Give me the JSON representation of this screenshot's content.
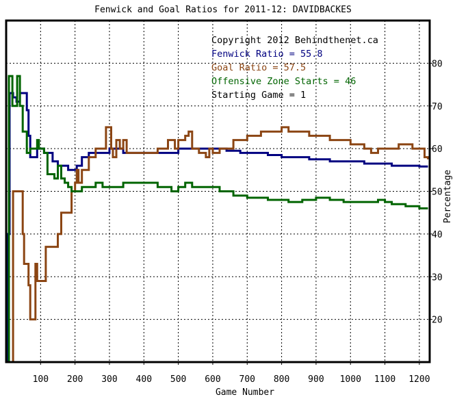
{
  "chart_data": {
    "type": "line",
    "title": "Fenwick and Goal Ratios for 2011-12: DAVIDBACKES",
    "xlabel": "Game Number",
    "ylabel": "Percentage",
    "xlim": [
      0,
      1230
    ],
    "ylim": [
      10,
      90
    ],
    "x_ticks": [
      100,
      200,
      300,
      400,
      500,
      600,
      700,
      800,
      900,
      1000,
      1100,
      1200
    ],
    "y_ticks": [
      20,
      30,
      40,
      50,
      60,
      70,
      80
    ],
    "grid": true,
    "legend_lines": [
      {
        "text": "Copyright 2012 Behindthenet.ca",
        "color": "#000000"
      },
      {
        "text": "Fenwick Ratio = 55.8",
        "color": "#000080"
      },
      {
        "text": "Goal Ratio = 57.5",
        "color": "#8b4513"
      },
      {
        "text": "Offensive Zone Starts = 46",
        "color": "#006400"
      },
      {
        "text": "Starting Game = 1",
        "color": "#000000"
      }
    ],
    "series": [
      {
        "name": "Fenwick Ratio",
        "color": "#000080",
        "points": [
          [
            1,
            10
          ],
          [
            4,
            10
          ],
          [
            6,
            40
          ],
          [
            10,
            73
          ],
          [
            20,
            72
          ],
          [
            30,
            71
          ],
          [
            40,
            73
          ],
          [
            50,
            73
          ],
          [
            55,
            73
          ],
          [
            60,
            69
          ],
          [
            65,
            63
          ],
          [
            70,
            58
          ],
          [
            80,
            58
          ],
          [
            90,
            60
          ],
          [
            100,
            60
          ],
          [
            110,
            59
          ],
          [
            125,
            59
          ],
          [
            135,
            57
          ],
          [
            150,
            56
          ],
          [
            165,
            56
          ],
          [
            180,
            55
          ],
          [
            195,
            55
          ],
          [
            205,
            56
          ],
          [
            220,
            58
          ],
          [
            240,
            59
          ],
          [
            260,
            59
          ],
          [
            280,
            59
          ],
          [
            300,
            60
          ],
          [
            320,
            60
          ],
          [
            340,
            59
          ],
          [
            360,
            59
          ],
          [
            380,
            59
          ],
          [
            400,
            59
          ],
          [
            420,
            59
          ],
          [
            440,
            59
          ],
          [
            460,
            59
          ],
          [
            480,
            59
          ],
          [
            500,
            60
          ],
          [
            520,
            60
          ],
          [
            540,
            60
          ],
          [
            560,
            60
          ],
          [
            580,
            60
          ],
          [
            600,
            60
          ],
          [
            620,
            60
          ],
          [
            640,
            59.5
          ],
          [
            660,
            59.5
          ],
          [
            680,
            59
          ],
          [
            700,
            59
          ],
          [
            720,
            59
          ],
          [
            740,
            59
          ],
          [
            760,
            58.5
          ],
          [
            780,
            58.5
          ],
          [
            800,
            58
          ],
          [
            820,
            58
          ],
          [
            840,
            58
          ],
          [
            860,
            58
          ],
          [
            880,
            57.5
          ],
          [
            900,
            57.5
          ],
          [
            920,
            57.5
          ],
          [
            940,
            57
          ],
          [
            960,
            57
          ],
          [
            980,
            57
          ],
          [
            1000,
            57
          ],
          [
            1020,
            57
          ],
          [
            1040,
            56.5
          ],
          [
            1060,
            56.5
          ],
          [
            1080,
            56.5
          ],
          [
            1100,
            56.5
          ],
          [
            1120,
            56
          ],
          [
            1140,
            56
          ],
          [
            1160,
            56
          ],
          [
            1180,
            56
          ],
          [
            1200,
            55.8
          ],
          [
            1225,
            55.8
          ]
        ]
      },
      {
        "name": "Goal Ratio",
        "color": "#8b4513",
        "points": [
          [
            1,
            10
          ],
          [
            10,
            10
          ],
          [
            15,
            10
          ],
          [
            20,
            50
          ],
          [
            30,
            50
          ],
          [
            45,
            50
          ],
          [
            48,
            40
          ],
          [
            52,
            33
          ],
          [
            60,
            33
          ],
          [
            65,
            28
          ],
          [
            70,
            20
          ],
          [
            80,
            20
          ],
          [
            85,
            33
          ],
          [
            90,
            29
          ],
          [
            100,
            29
          ],
          [
            110,
            29
          ],
          [
            115,
            37
          ],
          [
            125,
            37
          ],
          [
            135,
            37
          ],
          [
            140,
            37
          ],
          [
            150,
            40
          ],
          [
            160,
            45
          ],
          [
            170,
            45
          ],
          [
            180,
            45
          ],
          [
            190,
            50
          ],
          [
            200,
            52
          ],
          [
            205,
            55
          ],
          [
            210,
            52
          ],
          [
            220,
            55
          ],
          [
            240,
            58
          ],
          [
            260,
            60
          ],
          [
            280,
            60
          ],
          [
            290,
            65
          ],
          [
            300,
            65
          ],
          [
            305,
            60
          ],
          [
            310,
            58
          ],
          [
            320,
            62
          ],
          [
            330,
            60
          ],
          [
            340,
            62
          ],
          [
            350,
            59
          ],
          [
            360,
            59
          ],
          [
            380,
            59
          ],
          [
            400,
            59
          ],
          [
            420,
            59
          ],
          [
            440,
            60
          ],
          [
            460,
            60
          ],
          [
            470,
            62
          ],
          [
            480,
            62
          ],
          [
            490,
            60
          ],
          [
            500,
            62
          ],
          [
            510,
            62
          ],
          [
            520,
            63
          ],
          [
            530,
            64
          ],
          [
            540,
            60
          ],
          [
            550,
            60
          ],
          [
            560,
            59
          ],
          [
            580,
            58
          ],
          [
            590,
            60
          ],
          [
            600,
            59
          ],
          [
            620,
            60
          ],
          [
            640,
            60
          ],
          [
            660,
            62
          ],
          [
            680,
            62
          ],
          [
            700,
            63
          ],
          [
            720,
            63
          ],
          [
            740,
            64
          ],
          [
            760,
            64
          ],
          [
            780,
            64
          ],
          [
            800,
            65
          ],
          [
            820,
            64
          ],
          [
            840,
            64
          ],
          [
            860,
            64
          ],
          [
            880,
            63
          ],
          [
            900,
            63
          ],
          [
            920,
            63
          ],
          [
            940,
            62
          ],
          [
            960,
            62
          ],
          [
            980,
            62
          ],
          [
            1000,
            61
          ],
          [
            1020,
            61
          ],
          [
            1040,
            60
          ],
          [
            1060,
            59
          ],
          [
            1080,
            60
          ],
          [
            1100,
            60
          ],
          [
            1120,
            60
          ],
          [
            1140,
            61
          ],
          [
            1160,
            61
          ],
          [
            1180,
            60
          ],
          [
            1200,
            60
          ],
          [
            1215,
            58
          ],
          [
            1225,
            57.5
          ]
        ]
      },
      {
        "name": "Offensive Zone Starts",
        "color": "#006400",
        "points": [
          [
            1,
            10
          ],
          [
            6,
            10
          ],
          [
            8,
            77
          ],
          [
            12,
            77
          ],
          [
            18,
            70
          ],
          [
            25,
            70
          ],
          [
            32,
            77
          ],
          [
            40,
            70
          ],
          [
            48,
            64
          ],
          [
            55,
            64
          ],
          [
            60,
            59
          ],
          [
            70,
            60
          ],
          [
            80,
            60
          ],
          [
            90,
            62
          ],
          [
            95,
            60
          ],
          [
            100,
            60
          ],
          [
            110,
            59
          ],
          [
            120,
            54
          ],
          [
            130,
            54
          ],
          [
            140,
            53
          ],
          [
            150,
            56
          ],
          [
            160,
            53
          ],
          [
            170,
            52
          ],
          [
            180,
            51
          ],
          [
            190,
            50
          ],
          [
            200,
            50
          ],
          [
            220,
            51
          ],
          [
            240,
            51
          ],
          [
            260,
            52
          ],
          [
            280,
            51
          ],
          [
            300,
            51
          ],
          [
            320,
            51
          ],
          [
            340,
            52
          ],
          [
            360,
            52
          ],
          [
            380,
            52
          ],
          [
            400,
            52
          ],
          [
            420,
            52
          ],
          [
            440,
            51
          ],
          [
            460,
            51
          ],
          [
            480,
            50
          ],
          [
            500,
            51
          ],
          [
            520,
            52
          ],
          [
            540,
            51
          ],
          [
            560,
            51
          ],
          [
            580,
            51
          ],
          [
            600,
            51
          ],
          [
            620,
            50
          ],
          [
            640,
            50
          ],
          [
            660,
            49
          ],
          [
            680,
            49
          ],
          [
            700,
            48.5
          ],
          [
            720,
            48.5
          ],
          [
            740,
            48.5
          ],
          [
            760,
            48
          ],
          [
            780,
            48
          ],
          [
            800,
            48
          ],
          [
            820,
            47.5
          ],
          [
            840,
            47.5
          ],
          [
            860,
            48
          ],
          [
            880,
            48
          ],
          [
            900,
            48.5
          ],
          [
            920,
            48.5
          ],
          [
            940,
            48
          ],
          [
            960,
            48
          ],
          [
            980,
            47.5
          ],
          [
            1000,
            47.5
          ],
          [
            1020,
            47.5
          ],
          [
            1040,
            47.5
          ],
          [
            1060,
            47.5
          ],
          [
            1080,
            48
          ],
          [
            1100,
            47.5
          ],
          [
            1120,
            47
          ],
          [
            1140,
            47
          ],
          [
            1160,
            46.5
          ],
          [
            1180,
            46.5
          ],
          [
            1200,
            46
          ],
          [
            1225,
            46
          ]
        ]
      }
    ]
  }
}
